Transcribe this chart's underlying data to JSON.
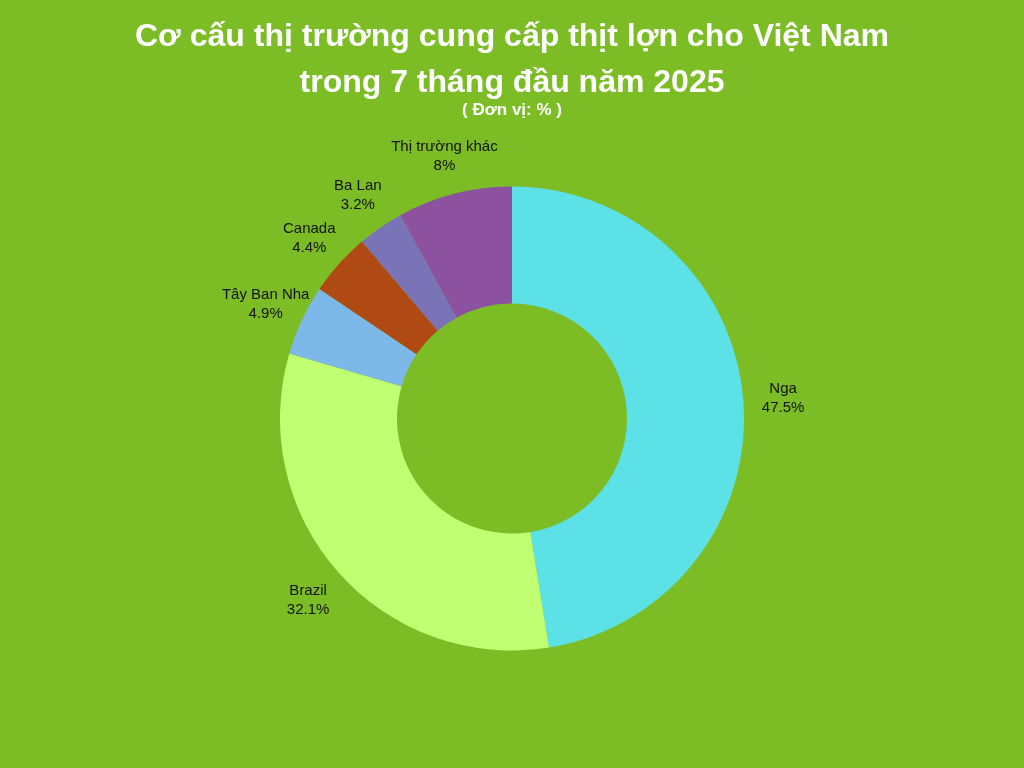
{
  "chart_data": {
    "type": "donut",
    "title": [
      "Cơ cấu thị trường cung cấp thịt lợn cho Việt Nam",
      "trong 7 tháng đầu năm 2025"
    ],
    "subtitle": "( Đơn vị: % )",
    "categories": [
      "Nga",
      "Brazil",
      "Tây Ban Nha",
      "Canada",
      "Ba Lan",
      "Thị trường khác"
    ],
    "values": [
      47.5,
      32.1,
      4.9,
      4.4,
      3.2,
      8
    ],
    "value_labels": [
      "47.5%",
      "32.1%",
      "4.9%",
      "4.4%",
      "3.2%",
      "8%"
    ],
    "colors": [
      "#5ce1e6",
      "#c1ff72",
      "#7cb9e8",
      "#b04a14",
      "#7b73b8",
      "#8c52a0"
    ],
    "legend": false
  }
}
